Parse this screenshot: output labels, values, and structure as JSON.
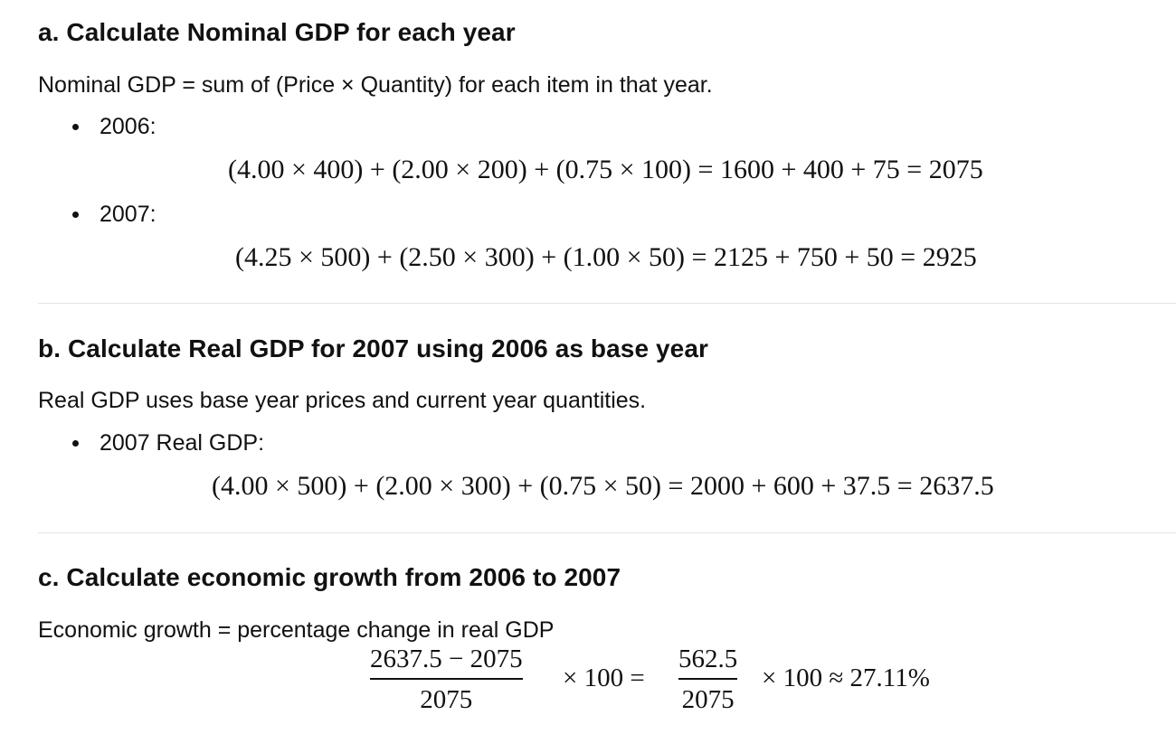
{
  "section_a": {
    "heading": "a. Calculate Nominal GDP for each year",
    "intro": "Nominal GDP = sum of (Price × Quantity) for each item in that year.",
    "bullets": [
      {
        "label": "2006:",
        "equation": "(4.00 × 400) + (2.00 × 200) + (0.75 × 100) = 1600 + 400 + 75 = 2075"
      },
      {
        "label": "2007:",
        "equation": "(4.25 × 500) + (2.50 × 300) + (1.00 × 50) = 2125 + 750 + 50 = 2925"
      }
    ]
  },
  "section_b": {
    "heading": "b. Calculate Real GDP for 2007 using 2006 as base year",
    "intro": "Real GDP uses base year prices and current year quantities.",
    "bullets": [
      {
        "label": "2007 Real GDP:",
        "equation": "(4.00 × 500) + (2.00 × 300) + (0.75 × 50) = 2000 + 600 + 37.5 = 2637.5"
      }
    ]
  },
  "section_c": {
    "heading": "c. Calculate economic growth from 2006 to 2007",
    "intro": "Economic growth = percentage change in real GDP",
    "formula": {
      "frac1_num": "2637.5 − 2075",
      "frac1_den": "2075",
      "op1": "× 100 =",
      "frac2_num": "562.5",
      "frac2_den": "2075",
      "op2": "× 100 ≈ 27.11%"
    }
  }
}
